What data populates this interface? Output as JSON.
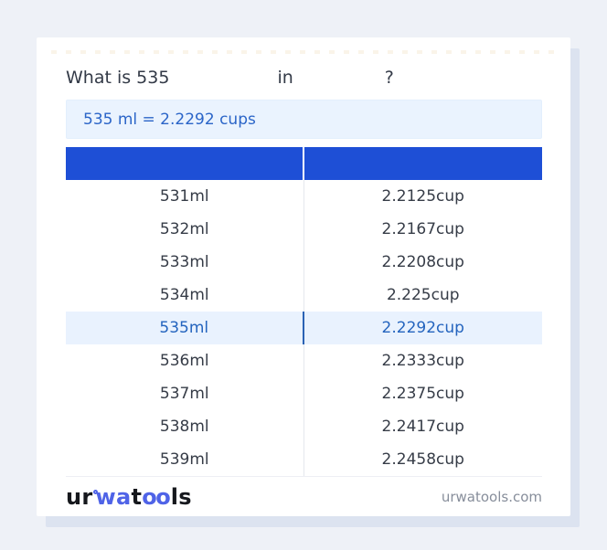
{
  "title": {
    "part1": "What is 535",
    "part2": "in",
    "part3": "?"
  },
  "result": "535 ml = 2.2292 cups",
  "table": {
    "header": {
      "ml": "",
      "cup": ""
    },
    "highlight_index": 4,
    "rows": [
      {
        "ml": "531ml",
        "cup": "2.2125cup"
      },
      {
        "ml": "532ml",
        "cup": "2.2167cup"
      },
      {
        "ml": "533ml",
        "cup": "2.2208cup"
      },
      {
        "ml": "534ml",
        "cup": "2.225cup"
      },
      {
        "ml": "535ml",
        "cup": "2.2292cup"
      },
      {
        "ml": "536ml",
        "cup": "2.2333cup"
      },
      {
        "ml": "537ml",
        "cup": "2.2375cup"
      },
      {
        "ml": "538ml",
        "cup": "2.2417cup"
      },
      {
        "ml": "539ml",
        "cup": "2.2458cup"
      }
    ]
  },
  "footer": {
    "logo": {
      "seg1": "ur",
      "seg2": "wa",
      "seg3": "t",
      "seg4": "oo",
      "seg5": "ls"
    },
    "domain": "urwatools.com"
  },
  "colors": {
    "page_bg": "#eef1f7",
    "card_shadow": "#dce3f0",
    "header_blue": "#1e4fd6",
    "highlight_bg": "#e9f2fe",
    "highlight_text": "#2464be",
    "result_bg": "#eaf3fe",
    "result_text": "#2b65c8",
    "logo_blue": "#4f63e7",
    "domain_text": "#878e9b"
  }
}
